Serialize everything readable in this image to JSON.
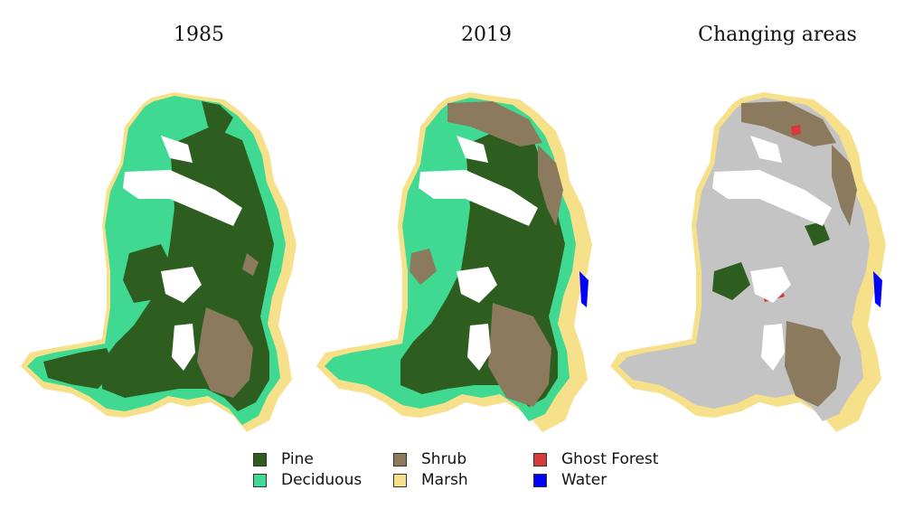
{
  "panels": [
    {
      "title": "1985",
      "id": "1985"
    },
    {
      "title": "2019",
      "id": "2019"
    },
    {
      "title": "Changing areas",
      "id": "change"
    }
  ],
  "legend": [
    {
      "label": "Pine",
      "color": "#2e5e1f"
    },
    {
      "label": "Deciduous",
      "color": "#3fd991"
    },
    {
      "label": "Shrub",
      "color": "#8c7a5e"
    },
    {
      "label": "Marsh",
      "color": "#f7e08a"
    },
    {
      "label": "Ghost Forest",
      "color": "#d63a3a"
    },
    {
      "label": "Water",
      "color": "#0000ff"
    }
  ],
  "colors": {
    "pine": "#2e5e1f",
    "deciduous": "#3fd991",
    "shrub": "#8c7a5e",
    "marsh": "#f7e08a",
    "ghost_forest": "#d63a3a",
    "water": "#0000ff",
    "unchanged": "#c4c4c4"
  }
}
